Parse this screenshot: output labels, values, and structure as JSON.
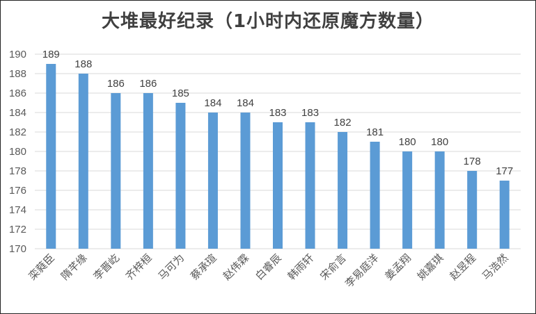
{
  "chart_data": {
    "type": "bar",
    "title": "大堆最好纪录（1小时内还原魔方数量）",
    "xlabel": "",
    "ylabel": "",
    "ylim": [
      170,
      190
    ],
    "yticks": [
      170,
      172,
      174,
      176,
      178,
      180,
      182,
      184,
      186,
      188,
      190
    ],
    "grid": true,
    "legend": "none",
    "bar_color": "#5b9bd5",
    "categories": [
      "栾蕤臣",
      "隋芊缘",
      "李晋屹",
      "齐梓桓",
      "马可为",
      "蔡承瑄",
      "赵伟霖",
      "白睿辰",
      "韩雨轩",
      "宋俞言",
      "李易庭洋",
      "姜孟翔",
      "姚嘉琪",
      "赵昱程",
      "马浩然"
    ],
    "values": [
      189,
      188,
      186,
      186,
      185,
      184,
      184,
      183,
      183,
      182,
      181,
      180,
      180,
      178,
      177
    ]
  }
}
